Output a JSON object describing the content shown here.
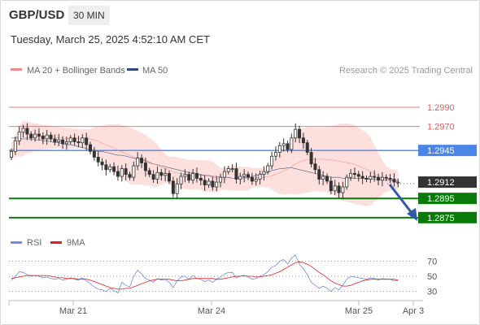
{
  "header": {
    "pair": "GBP/USD",
    "timeframe": "30 MIN",
    "timestamp": "Tuesday, March 25, 2025 4:52:10 AM CET"
  },
  "legend": {
    "ma20_label": "MA 20 + Bollinger Bands",
    "ma50_label": "MA 50",
    "credit": "Research © 2025 Trading Central",
    "rsi_label": "RSI",
    "ma9_label": "9MA"
  },
  "colors": {
    "resistance": "#e05a5a",
    "pivot": "#4a86e8",
    "support": "#0a7a0a",
    "current": "#333333",
    "up_candle": "#ffffff",
    "down_candle": "#333333",
    "bollinger": "#fde0dd",
    "ma20": "#f28b8b",
    "ma50": "#2b4a7e",
    "rsi": "#6e8fe0",
    "rsi_ma": "#e02020",
    "arrow": "#2e5aa6"
  },
  "icons": {
    "arrow": "down-right-arrow-icon"
  },
  "chart_data": [
    {
      "type": "candlestick",
      "title": "GBP/USD",
      "x_ticks": [
        "Mar 21",
        "Mar 24",
        "Mar 25",
        "Apr 3"
      ],
      "ylim": [
        1.2863,
        1.3001
      ],
      "levels": [
        {
          "label": "1.2990",
          "value": 1.299,
          "kind": "resistance"
        },
        {
          "label": "1.2970",
          "value": 1.297,
          "kind": "resistance"
        },
        {
          "label": "1.2945",
          "value": 1.2945,
          "kind": "pivot"
        },
        {
          "label": "1.2912",
          "value": 1.2912,
          "kind": "current"
        },
        {
          "label": "1.2895",
          "value": 1.2895,
          "kind": "support"
        },
        {
          "label": "1.2875",
          "value": 1.2875,
          "kind": "support"
        }
      ],
      "closes": [
        1.2944,
        1.2955,
        1.2964,
        1.2968,
        1.2962,
        1.2958,
        1.2962,
        1.296,
        1.2957,
        1.2961,
        1.2957,
        1.2954,
        1.2956,
        1.2952,
        1.2954,
        1.2958,
        1.2954,
        1.2953,
        1.2958,
        1.2951,
        1.2944,
        1.2938,
        1.2933,
        1.293,
        1.2925,
        1.2928,
        1.2923,
        1.2918,
        1.2926,
        1.292,
        1.2917,
        1.2929,
        1.2937,
        1.2932,
        1.2924,
        1.292,
        1.2915,
        1.2922,
        1.2919,
        1.2921,
        1.2913,
        1.29,
        1.291,
        1.2918,
        1.292,
        1.2914,
        1.2921,
        1.2916,
        1.2914,
        1.2909,
        1.2913,
        1.2907,
        1.2912,
        1.2917,
        1.2923,
        1.2926,
        1.2926,
        1.2915,
        1.2918,
        1.292,
        1.2917,
        1.2913,
        1.2915,
        1.292,
        1.2923,
        1.2929,
        1.2939,
        1.2943,
        1.295,
        1.2952,
        1.2946,
        1.2958,
        1.2967,
        1.2958,
        1.2953,
        1.2943,
        1.2931,
        1.2925,
        1.2915,
        1.2918,
        1.2913,
        1.2903,
        1.2908,
        1.2901,
        1.2907,
        1.2917,
        1.2921,
        1.292,
        1.2918,
        1.2916,
        1.2915,
        1.2918,
        1.2917,
        1.2914,
        1.2917,
        1.2916,
        1.2915,
        1.2912,
        1.2912
      ],
      "ma50": [
        1.2958,
        1.2958,
        1.2958,
        1.2957,
        1.2957,
        1.2957,
        1.2956,
        1.2956,
        1.2955,
        1.2955,
        1.2954,
        1.2953,
        1.2953,
        1.2952,
        1.2951,
        1.2951,
        1.295,
        1.2949,
        1.2948,
        1.2947,
        1.2946,
        1.2945,
        1.2944,
        1.2944,
        1.2943,
        1.2942,
        1.2941,
        1.294,
        1.294,
        1.2939,
        1.2938,
        1.2937,
        1.2936,
        1.2935,
        1.2934,
        1.2932,
        1.2931,
        1.293,
        1.2929,
        1.2928,
        1.2927,
        1.2926,
        1.2925,
        1.2924,
        1.2923,
        1.2922,
        1.2922,
        1.2921,
        1.292,
        1.2919,
        1.2919,
        1.2918,
        1.2918,
        1.2917,
        1.2917,
        1.2917,
        1.2916,
        1.2916,
        1.2916,
        1.2917,
        1.2917,
        1.2918,
        1.2919,
        1.292,
        1.2921,
        1.2922,
        1.2924,
        1.2925,
        1.2926,
        1.2926,
        1.2927,
        1.2927,
        1.2926,
        1.2925,
        1.2924,
        1.2923,
        1.2922,
        1.2921,
        1.292,
        1.2919,
        1.2918,
        1.2917,
        1.2917,
        1.2917,
        1.2916,
        1.2916,
        1.2916,
        1.2916,
        1.2916,
        1.2916,
        1.2916,
        1.2915,
        1.2915,
        1.2915,
        1.2914,
        1.2914,
        1.2914,
        1.2913,
        1.2913
      ]
    },
    {
      "type": "line",
      "title": "RSI",
      "y_ticks": [
        70,
        50,
        30
      ],
      "ylim": [
        20,
        80
      ],
      "series": [
        {
          "name": "RSI",
          "values": [
            45,
            50,
            56,
            55,
            52,
            50,
            51,
            50,
            48,
            49,
            47,
            46,
            47,
            45,
            46,
            48,
            46,
            45,
            48,
            44,
            40,
            36,
            33,
            32,
            30,
            34,
            31,
            28,
            42,
            38,
            36,
            50,
            58,
            53,
            47,
            45,
            42,
            47,
            45,
            46,
            42,
            35,
            44,
            49,
            50,
            46,
            51,
            47,
            46,
            43,
            45,
            42,
            46,
            49,
            53,
            55,
            55,
            48,
            50,
            51,
            49,
            46,
            47,
            50,
            52,
            56,
            62,
            64,
            70,
            72,
            66,
            74,
            78,
            66,
            60,
            52,
            42,
            38,
            34,
            37,
            34,
            30,
            35,
            32,
            38,
            46,
            50,
            49,
            48,
            47,
            46,
            48,
            47,
            45,
            47,
            46,
            46,
            44,
            44
          ]
        },
        {
          "name": "9MA",
          "values": [
            47,
            48,
            49,
            50,
            51,
            51,
            51,
            51,
            51,
            51,
            50,
            49,
            48,
            48,
            47,
            47,
            47,
            46,
            46,
            46,
            45,
            43,
            41,
            39,
            37,
            35,
            34,
            33,
            33,
            34,
            34,
            36,
            38,
            40,
            42,
            44,
            45,
            46,
            46,
            46,
            46,
            45,
            44,
            44,
            45,
            46,
            47,
            47,
            47,
            47,
            47,
            47,
            46,
            46,
            47,
            48,
            49,
            50,
            50,
            51,
            50,
            50,
            49,
            49,
            50,
            51,
            52,
            54,
            56,
            59,
            62,
            65,
            68,
            69,
            68,
            66,
            63,
            59,
            55,
            52,
            48,
            44,
            41,
            39,
            37,
            37,
            38,
            40,
            42,
            44,
            45,
            46,
            46,
            46,
            46,
            46,
            46,
            46,
            45
          ]
        }
      ]
    }
  ]
}
